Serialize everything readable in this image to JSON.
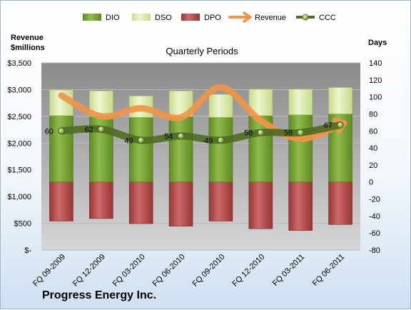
{
  "company_name": "Progress Energy Inc.",
  "chart_data": {
    "type": "bar",
    "title": "Quarterly Periods",
    "ylabel_left": "Revenue $millions",
    "ylabel_right": "Days",
    "stacked": true,
    "legend_position": "top",
    "grid": true,
    "categories": [
      "FQ 09-2009",
      "FQ 12-2009",
      "FQ 03-2010",
      "FQ 06-2010",
      "FQ 09-2010",
      "FQ 12-2010",
      "FQ 03-2011",
      "FQ 06-2011"
    ],
    "ylim_left": [
      0,
      3500
    ],
    "yticks_left": [
      "$-",
      "$500",
      "$1,000",
      "$1,500",
      "$2,000",
      "$2,500",
      "$3,000",
      "$3,500"
    ],
    "ylim_right": [
      -80,
      140
    ],
    "yticks_right": [
      "-80",
      "-60",
      "-40",
      "-20",
      "0",
      "20",
      "40",
      "60",
      "80",
      "100",
      "120",
      "140"
    ],
    "series": [
      {
        "name": "DIO",
        "type": "bar",
        "axis": "right",
        "color": "#7aa23a",
        "values": [
          78,
          77,
          76,
          77,
          76,
          78,
          79,
          80
        ]
      },
      {
        "name": "DSO",
        "type": "bar",
        "axis": "right",
        "color": "#dbeaae",
        "values": [
          30,
          30,
          25,
          30,
          27,
          31,
          30,
          31
        ]
      },
      {
        "name": "DPO",
        "type": "bar",
        "axis": "right",
        "color": "#b84e4e",
        "values": [
          -46,
          -43,
          -49,
          -52,
          -46,
          -55,
          -57,
          -50
        ]
      },
      {
        "name": "Revenue",
        "type": "line",
        "axis": "left",
        "color": "#f0954a",
        "values": [
          2890,
          2500,
          2650,
          2480,
          3040,
          2420,
          2080,
          2350
        ]
      },
      {
        "name": "CCC",
        "type": "line",
        "axis": "right",
        "color": "#4f6b22",
        "values": [
          60,
          62,
          49,
          54,
          49,
          58,
          58,
          67
        ],
        "data_labels": [
          "60",
          "62",
          "49",
          "54",
          "49",
          "58",
          "58",
          "67"
        ]
      }
    ]
  }
}
